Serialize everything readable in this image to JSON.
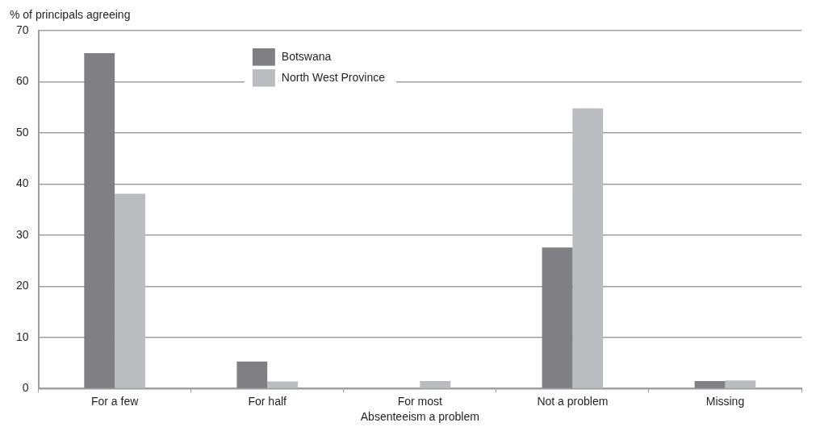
{
  "chart_data": {
    "type": "bar",
    "xlabel": "Absenteeism a problem",
    "ylabel": "% of principals agreeing",
    "categories": [
      "For a few",
      "For half",
      "For most",
      "Not a problem",
      "Missing"
    ],
    "series": [
      {
        "name": "Botswana",
        "color": "#808084",
        "values": [
          65.6,
          5.3,
          0,
          27.6,
          1.5
        ]
      },
      {
        "name": "North West Province",
        "color": "#bbbcc0",
        "values": [
          38.1,
          1.4,
          1.5,
          54.8,
          1.6
        ]
      }
    ],
    "ylim": [
      0,
      70
    ],
    "yticks": [
      0,
      10,
      20,
      30,
      40,
      50,
      60,
      70
    ],
    "grid": "y",
    "legend": "top"
  }
}
